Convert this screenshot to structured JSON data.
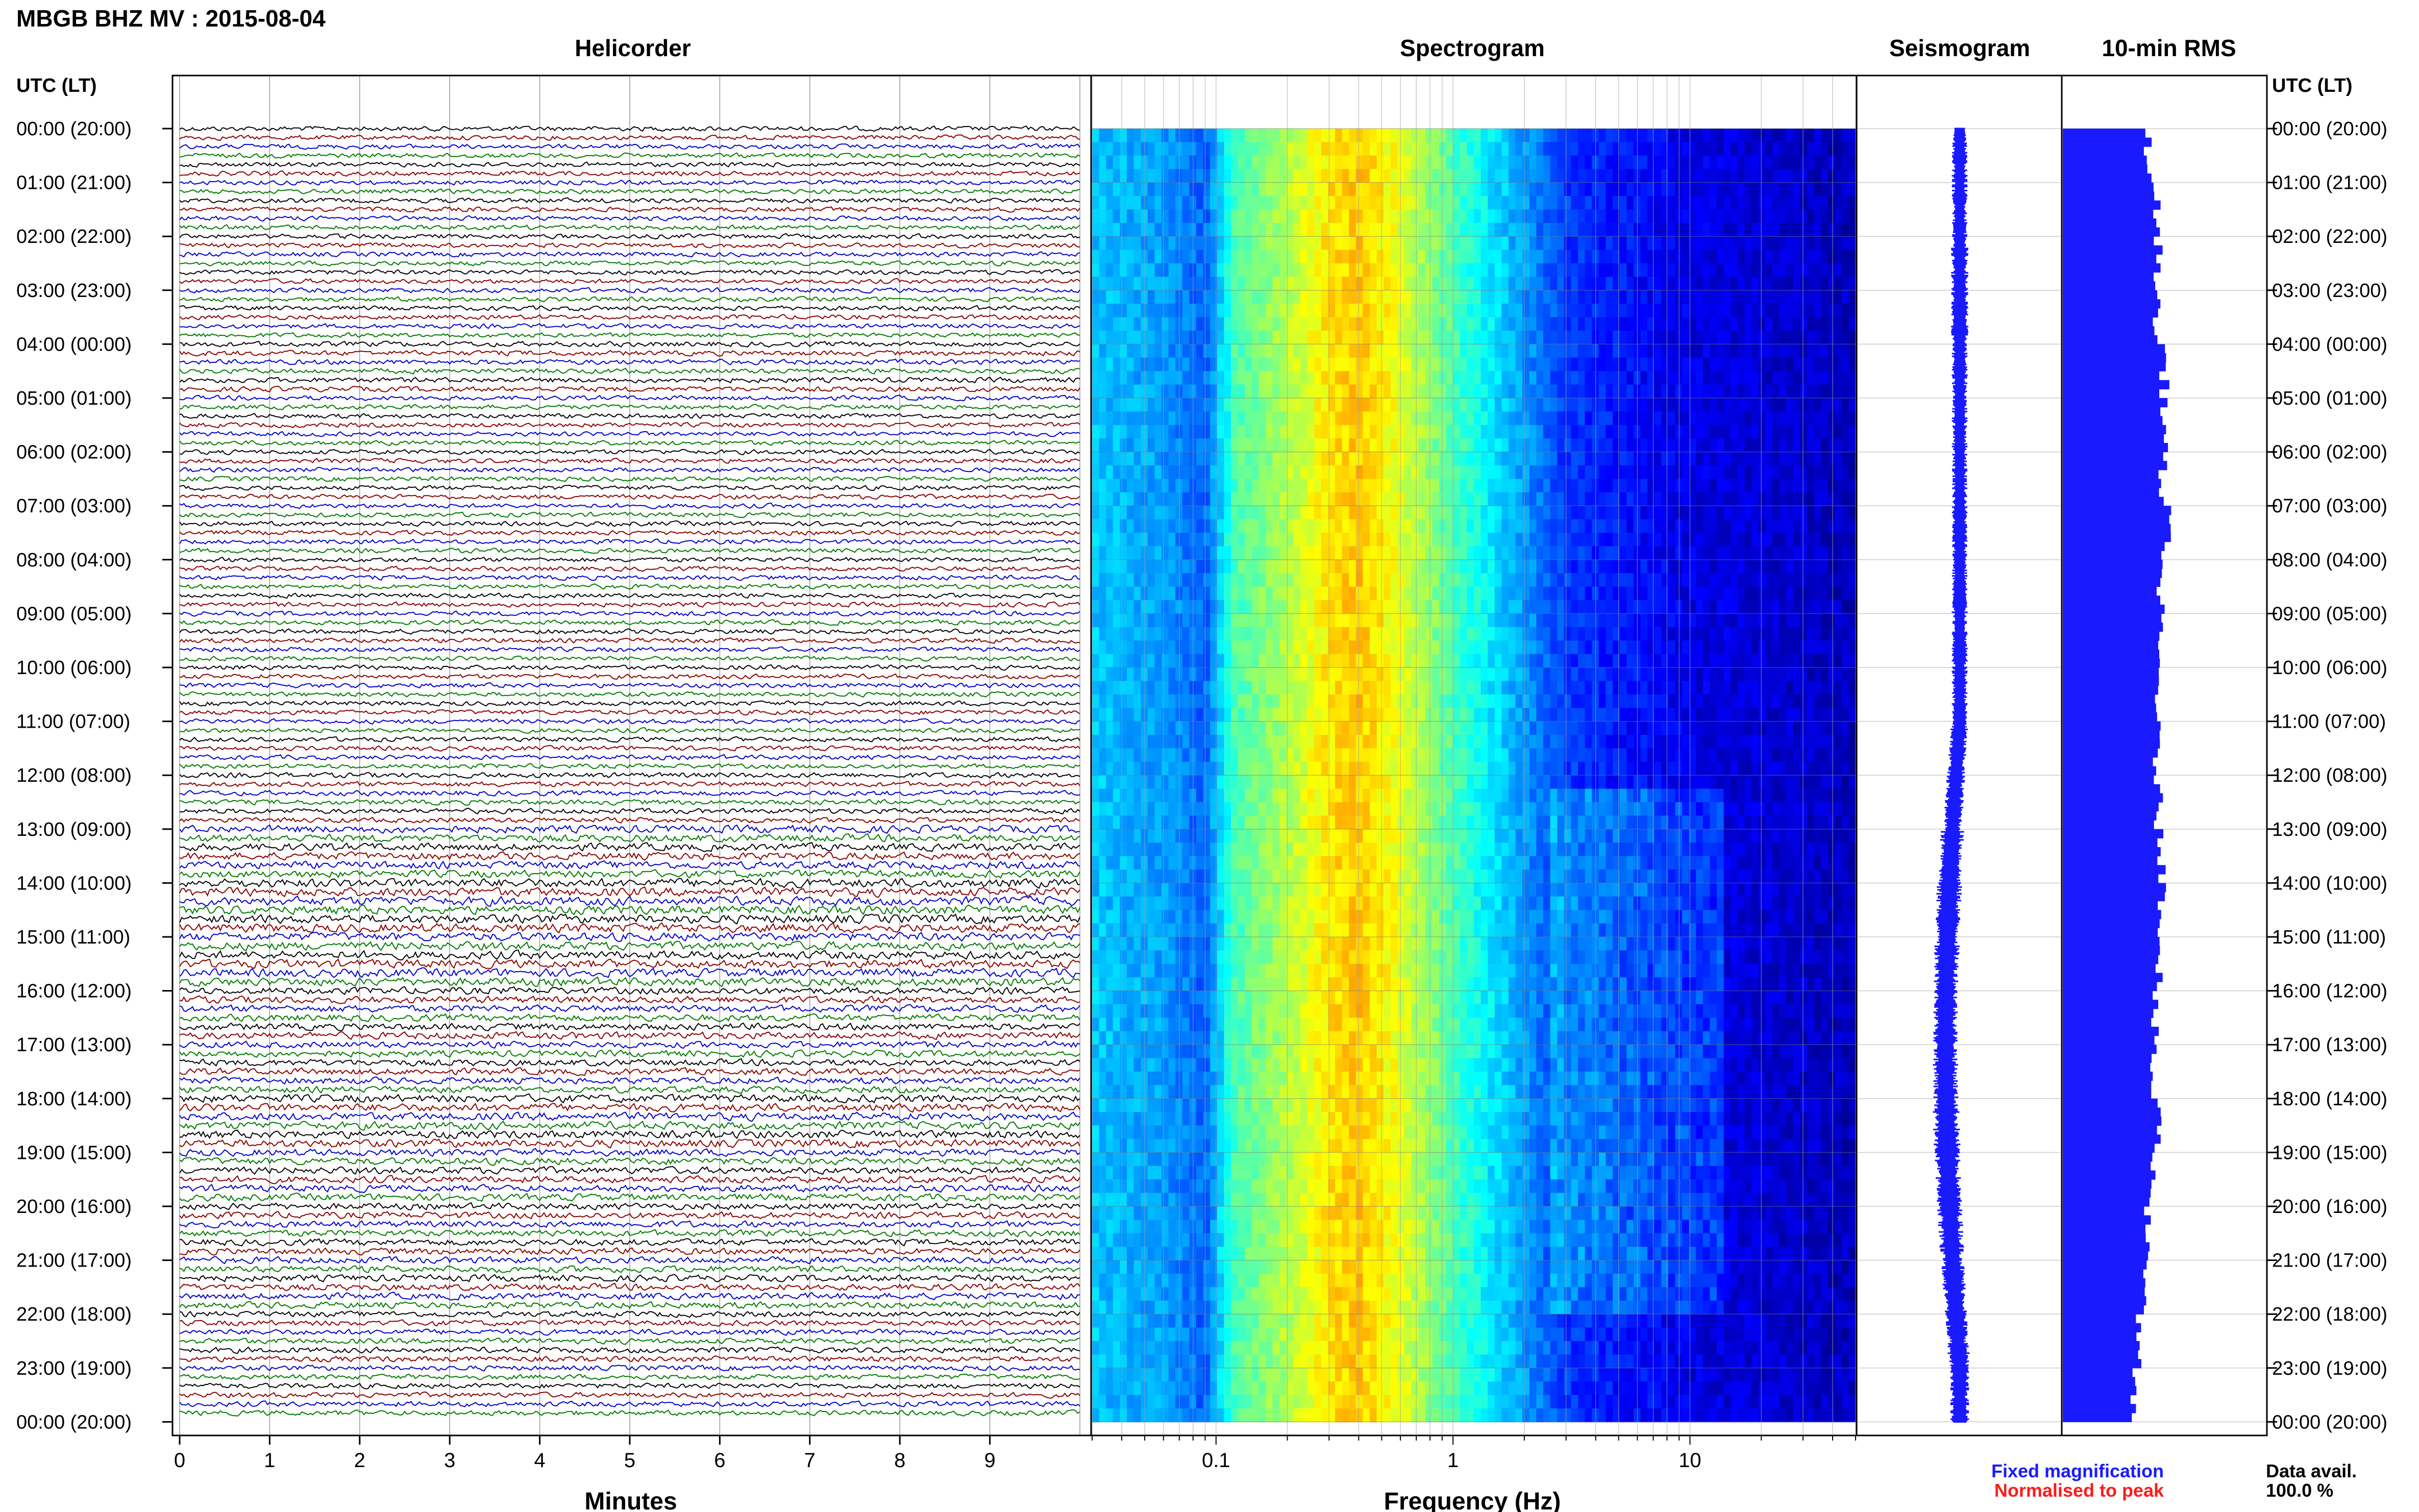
{
  "page": {
    "title": "MBGB BHZ MV : 2015-08-04",
    "time_axis_label": "UTC (LT)"
  },
  "panels": {
    "helicorder_title": "Helicorder",
    "spectrogram_title": "Spectrogram",
    "seismogram_title": "Seismogram",
    "rms_title": "10-min RMS"
  },
  "legend": {
    "fixed": "Fixed magnification",
    "normalised": "Normalised to peak",
    "fixed_color": "#1a1aff",
    "normalised_color": "#ff1a1a"
  },
  "availability": {
    "label": "Data avail.",
    "value": "100.0 %"
  },
  "time_ticks": [
    "00:00 (20:00)",
    "01:00 (21:00)",
    "02:00 (22:00)",
    "03:00 (23:00)",
    "04:00 (00:00)",
    "05:00 (01:00)",
    "06:00 (02:00)",
    "07:00 (03:00)",
    "08:00 (04:00)",
    "09:00 (05:00)",
    "10:00 (06:00)",
    "11:00 (07:00)",
    "12:00 (08:00)",
    "13:00 (09:00)",
    "14:00 (10:00)",
    "15:00 (11:00)",
    "16:00 (12:00)",
    "17:00 (13:00)",
    "18:00 (14:00)",
    "19:00 (15:00)",
    "20:00 (16:00)",
    "21:00 (17:00)",
    "22:00 (18:00)",
    "23:00 (19:00)",
    "00:00 (20:00)"
  ],
  "chart_data": [
    {
      "type": "line",
      "panel": "Helicorder",
      "xlabel": "Minutes",
      "x_ticks": [
        "0",
        "1",
        "2",
        "3",
        "4",
        "5",
        "6",
        "7",
        "8",
        "9"
      ],
      "xlim": [
        0,
        10
      ],
      "ylim_hours_utc": [
        0,
        24
      ],
      "trace_colors": [
        "#000000",
        "#8b0000",
        "#0000cd",
        "#007a00"
      ],
      "rows_per_hour": 6,
      "row_minutes": 10,
      "amplitude_by_hour": [
        1,
        1,
        1,
        1,
        1.1,
        1,
        1,
        1,
        1,
        1,
        1,
        1,
        1.1,
        1.6,
        1.9,
        1.8,
        1.5,
        1.4,
        1.7,
        1.5,
        1.4,
        1.4,
        1.2,
        1.1
      ]
    },
    {
      "type": "heatmap",
      "panel": "Spectrogram",
      "xlabel": "Frequency (Hz)",
      "x_scale": "log",
      "xlim": [
        0.03,
        50
      ],
      "x_ticks": [
        "0.1",
        "1",
        "10"
      ],
      "colormap": "jet",
      "ylim_hours_utc": [
        0,
        24
      ],
      "band_intensity": [
        {
          "f": 0.03,
          "v": 0.32
        },
        {
          "f": 0.06,
          "v": 0.28
        },
        {
          "f": 0.09,
          "v": 0.22
        },
        {
          "f": 0.12,
          "v": 0.45
        },
        {
          "f": 0.2,
          "v": 0.55
        },
        {
          "f": 0.3,
          "v": 0.65
        },
        {
          "f": 0.4,
          "v": 0.68
        },
        {
          "f": 0.6,
          "v": 0.6
        },
        {
          "f": 1.0,
          "v": 0.45
        },
        {
          "f": 1.6,
          "v": 0.33
        },
        {
          "f": 3.0,
          "v": 0.18
        },
        {
          "f": 10,
          "v": 0.1
        },
        {
          "f": 50,
          "v": 0.06
        }
      ]
    },
    {
      "type": "line",
      "panel": "Seismogram",
      "color": "#1a1aff",
      "ylim_hours_utc": [
        0,
        24
      ],
      "width_by_hour": [
        1,
        1,
        1.1,
        1.1,
        1,
        1,
        1,
        1,
        1,
        1,
        1,
        1.1,
        1.2,
        1.5,
        1.6,
        1.6,
        1.6,
        1.6,
        1.7,
        1.6,
        1.6,
        1.5,
        1.4,
        1.2
      ]
    },
    {
      "type": "bar",
      "panel": "10-min RMS",
      "orientation": "horizontal",
      "color": "#1a1aff",
      "ylim_hours_utc": [
        0,
        24
      ],
      "row_minutes": 10,
      "xlim": [
        0,
        1
      ],
      "values_by_hour": [
        0.42,
        0.46,
        0.47,
        0.46,
        0.5,
        0.5,
        0.49,
        0.51,
        0.48,
        0.47,
        0.47,
        0.46,
        0.47,
        0.49,
        0.49,
        0.48,
        0.45,
        0.44,
        0.47,
        0.44,
        0.42,
        0.41,
        0.37,
        0.35
      ]
    }
  ]
}
